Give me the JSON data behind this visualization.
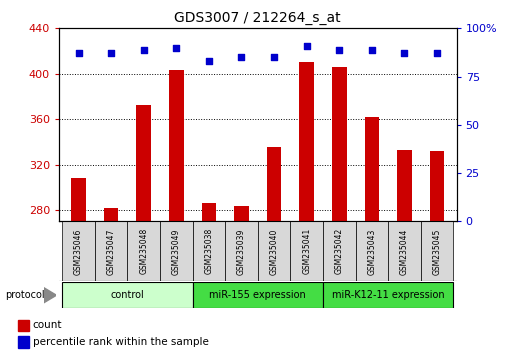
{
  "title": "GDS3007 / 212264_s_at",
  "samples": [
    "GSM235046",
    "GSM235047",
    "GSM235048",
    "GSM235049",
    "GSM235038",
    "GSM235039",
    "GSM235040",
    "GSM235041",
    "GSM235042",
    "GSM235043",
    "GSM235044",
    "GSM235045"
  ],
  "counts": [
    308,
    282,
    372,
    403,
    286,
    283,
    335,
    410,
    406,
    362,
    333,
    332
  ],
  "percentile_ranks": [
    87,
    87,
    89,
    90,
    83,
    85,
    85,
    91,
    89,
    89,
    87,
    87
  ],
  "group_labels": [
    "control",
    "miR-155 expression",
    "miR-K12-11 expression"
  ],
  "group_ranges": [
    [
      0,
      4
    ],
    [
      4,
      8
    ],
    [
      8,
      12
    ]
  ],
  "group_colors": [
    "#ccffcc",
    "#44dd44",
    "#44dd44"
  ],
  "ylim_left": [
    270,
    440
  ],
  "ylim_right": [
    0,
    100
  ],
  "yticks_left": [
    280,
    320,
    360,
    400,
    440
  ],
  "yticks_right": [
    0,
    25,
    50,
    75,
    100
  ],
  "bar_color": "#cc0000",
  "dot_color": "#0000cc",
  "bar_bottom": 270,
  "background_color": "#ffffff",
  "grid_color": "#000000",
  "title_fontsize": 10,
  "tick_fontsize": 8,
  "sample_fontsize": 5.5,
  "group_fontsize": 7,
  "legend_fontsize": 7.5
}
